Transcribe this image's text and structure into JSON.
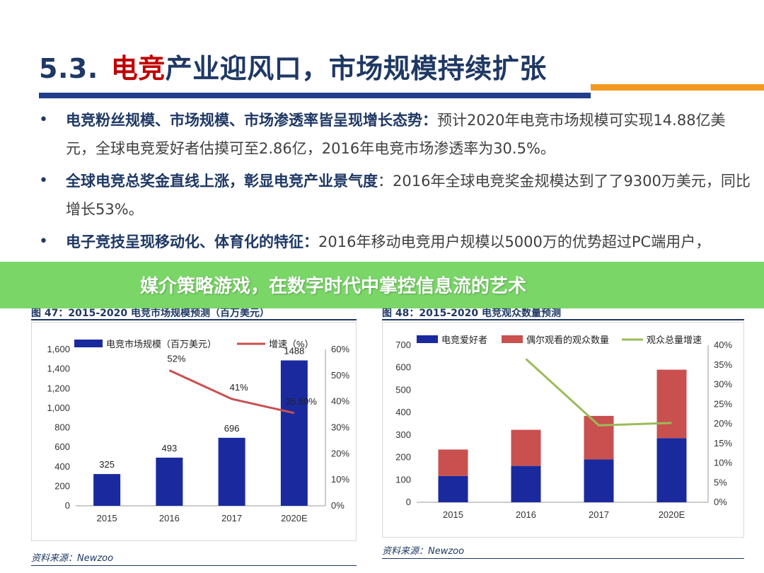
{
  "slide": {
    "title_number": "5.3.",
    "title_highlight": "电竞",
    "title_rest": "产业迎风口，市场规模持续扩张",
    "bullets": [
      {
        "lead": "电竞粉丝规模、市场规模、市场渗透率皆呈现增长态势：",
        "text": "预计2020年电竞市场规模可实现14.88亿美元，全球电竞爱好者估摸可至2.86亿，2016年电竞市场渗透率为30.5%。"
      },
      {
        "lead": "全球电竞总奖金直线上涨，彰显电竞产业景气度",
        "text": "：2016年全球电竞奖金规模达到了了9300万美元，同比增长53%。"
      },
      {
        "lead": "电子竞技呈现移动化、体育化的特征：",
        "text": "2016年移动电竞用户规模以5000万的优势超过PC端用户，"
      }
    ],
    "overlay_banner": "媒介策略游戏，在数字时代中掌控信息流的艺术"
  },
  "colors": {
    "title_navy": "#1f3864",
    "title_red": "#c00000",
    "bar_blue": "#1a2a9e",
    "bar_red": "#c9504f",
    "line_red": "#c9504f",
    "line_green": "#9bbb59",
    "accent_orange": "#f29a1f",
    "banner_green": "#6ed25a"
  },
  "chart_data": [
    {
      "type": "bar",
      "caption": "图 47：2015-2020 电竞市场规模预测（百万美元）",
      "source": "资料来源：Newzoo",
      "categories": [
        "2015",
        "2016",
        "2017",
        "2020E"
      ],
      "series": [
        {
          "name": "电竞市场规模（百万美元）",
          "type": "bar",
          "values": [
            325,
            493,
            696,
            1488
          ],
          "labels": [
            "325",
            "493",
            "696",
            "1488"
          ]
        },
        {
          "name": "增速（%）",
          "type": "line",
          "axis": "right",
          "values": [
            null,
            52,
            41,
            35.6
          ],
          "labels": [
            "",
            "52%",
            "41%",
            "35.60%"
          ]
        }
      ],
      "y_left": {
        "min": 0,
        "max": 1600,
        "ticks": [
          "0",
          "200",
          "400",
          "600",
          "800",
          "1,000",
          "1,200",
          "1,400",
          "1,600"
        ]
      },
      "y_right": {
        "min": 0,
        "max": 60,
        "ticks": [
          "0%",
          "10%",
          "20%",
          "30%",
          "40%",
          "50%",
          "60%"
        ]
      },
      "legend_position": "top"
    },
    {
      "type": "bar",
      "stacked": true,
      "caption": "图 48：2015-2020 电竞观众数量预测",
      "source": "资料来源：Newzoo",
      "categories": [
        "2015",
        "2016",
        "2017",
        "2020E"
      ],
      "series": [
        {
          "name": "电竞爱好者",
          "type": "bar",
          "values": [
            117,
            162,
            191,
            286
          ]
        },
        {
          "name": "偶尔观看的观众数量",
          "type": "bar",
          "values": [
            118,
            161,
            194,
            305
          ]
        },
        {
          "name": "观众总量增速",
          "type": "line",
          "axis": "right",
          "values": [
            null,
            36.5,
            19.6,
            20.2
          ]
        }
      ],
      "y_left": {
        "min": 0,
        "max": 700,
        "ticks": [
          "0",
          "100",
          "200",
          "300",
          "400",
          "500",
          "600",
          "700"
        ]
      },
      "y_right": {
        "min": 0,
        "max": 40,
        "ticks": [
          "0%",
          "5%",
          "10%",
          "15%",
          "20%",
          "25%",
          "30%",
          "35%",
          "40%"
        ]
      },
      "legend_position": "top"
    }
  ]
}
